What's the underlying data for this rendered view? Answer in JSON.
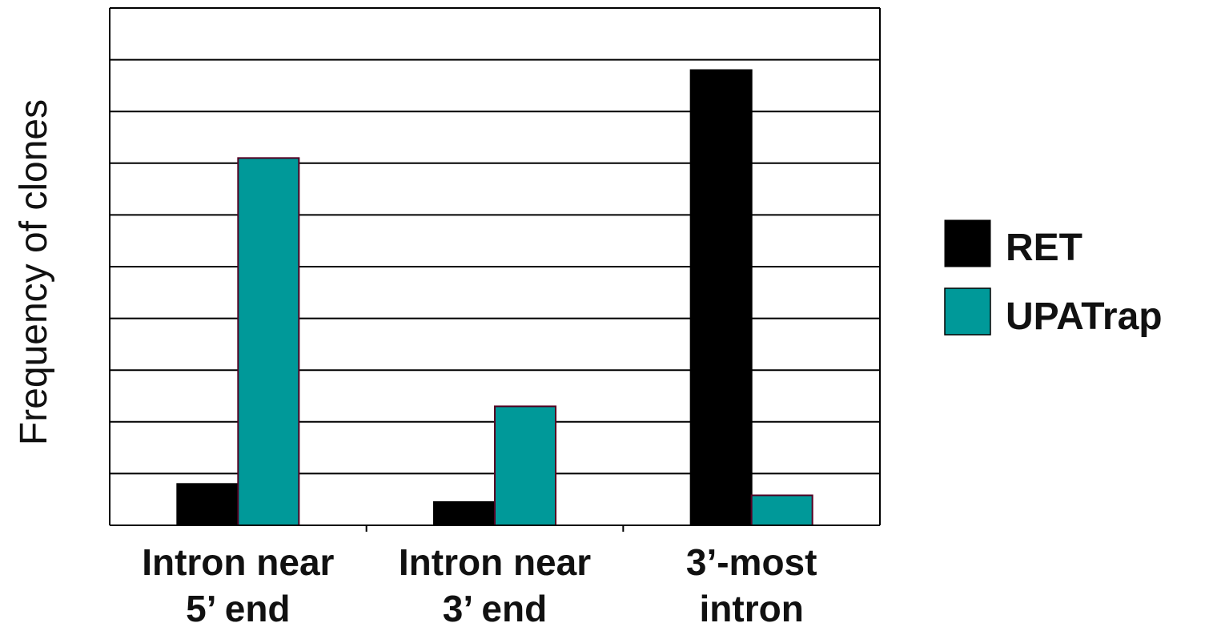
{
  "chart_data": {
    "type": "bar",
    "title": "",
    "xlabel": "",
    "ylabel": "Frequency of clones",
    "categories": [
      [
        "Intron near",
        "5’ end"
      ],
      [
        "Intron near",
        "3’ end"
      ],
      [
        "3’-most",
        "intron"
      ]
    ],
    "series": [
      {
        "name": "RET",
        "color": "#000000",
        "values": [
          0.8,
          0.45,
          8.8
        ]
      },
      {
        "name": "UPATrap",
        "color": "#009999",
        "values": [
          7.1,
          2.3,
          0.58
        ]
      }
    ],
    "ylim": [
      0,
      10
    ],
    "y_ticks": [
      0,
      1,
      2,
      3,
      4,
      5,
      6,
      7,
      8,
      9,
      10
    ],
    "y_tick_labels_shown": false,
    "grid": true,
    "legend": {
      "placement": "right"
    }
  }
}
